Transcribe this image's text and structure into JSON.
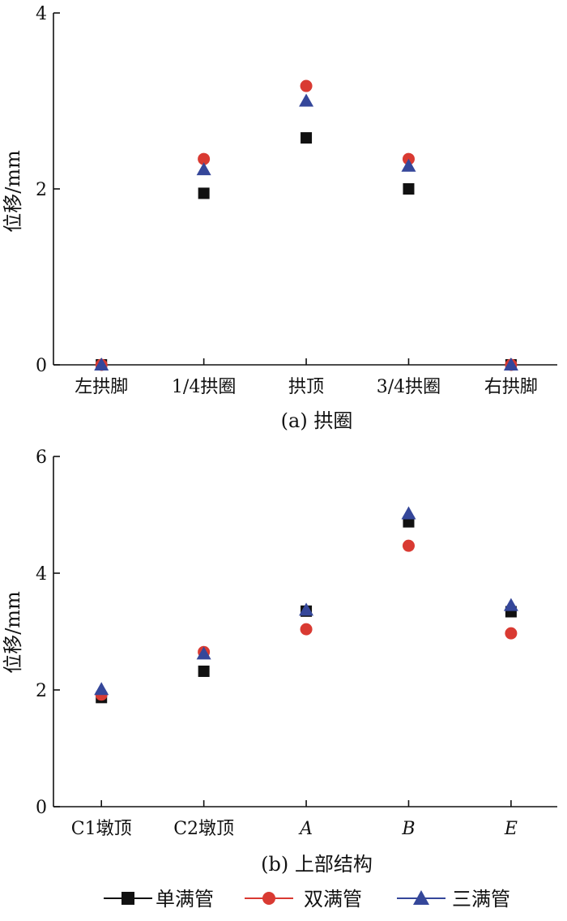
{
  "chart_data": [
    {
      "type": "scatter",
      "title": "",
      "caption": "(a) 拱圈",
      "xlabel": "",
      "ylabel": "位移/mm",
      "ylim": [
        0,
        4
      ],
      "yticks": [
        0,
        2,
        4
      ],
      "categories": [
        "左拱脚",
        "1/4拱圈",
        "拱顶",
        "3/4拱圈",
        "右拱脚"
      ],
      "category_italic": [
        false,
        false,
        false,
        false,
        false
      ],
      "series": [
        {
          "name": "单满管",
          "marker": "square",
          "color": "#111111",
          "values": [
            0.0,
            1.95,
            2.58,
            2.0,
            0.0
          ]
        },
        {
          "name": "双满管",
          "marker": "circle",
          "color": "#d93a32",
          "values": [
            0.0,
            2.34,
            3.17,
            2.34,
            0.0
          ]
        },
        {
          "name": "三满管",
          "marker": "triangle",
          "color": "#35479a",
          "values": [
            0.0,
            2.22,
            3.0,
            2.26,
            0.0
          ]
        }
      ],
      "grid": false
    },
    {
      "type": "scatter",
      "title": "",
      "caption": "(b) 上部结构",
      "xlabel": "",
      "ylabel": "位移/mm",
      "ylim": [
        0,
        6
      ],
      "yticks": [
        0,
        2,
        4,
        6
      ],
      "categories": [
        "C1墩顶",
        "C2墩顶",
        "A",
        "B",
        "E"
      ],
      "category_italic": [
        false,
        false,
        true,
        true,
        true
      ],
      "series": [
        {
          "name": "单满管",
          "marker": "square",
          "color": "#111111",
          "values": [
            1.87,
            2.32,
            3.35,
            4.88,
            3.34
          ]
        },
        {
          "name": "双满管",
          "marker": "circle",
          "color": "#d93a32",
          "values": [
            1.92,
            2.65,
            3.04,
            4.47,
            2.97
          ]
        },
        {
          "name": "三满管",
          "marker": "triangle",
          "color": "#35479a",
          "values": [
            2.01,
            2.62,
            3.37,
            5.02,
            3.45
          ]
        }
      ],
      "grid": false
    }
  ],
  "legend": {
    "placement": "bottom",
    "items": [
      {
        "label": "单满管",
        "marker": "square",
        "color": "#111111"
      },
      {
        "label": "双满管",
        "marker": "circle",
        "color": "#d93a32"
      },
      {
        "label": "三满管",
        "marker": "triangle",
        "color": "#35479a"
      }
    ]
  }
}
